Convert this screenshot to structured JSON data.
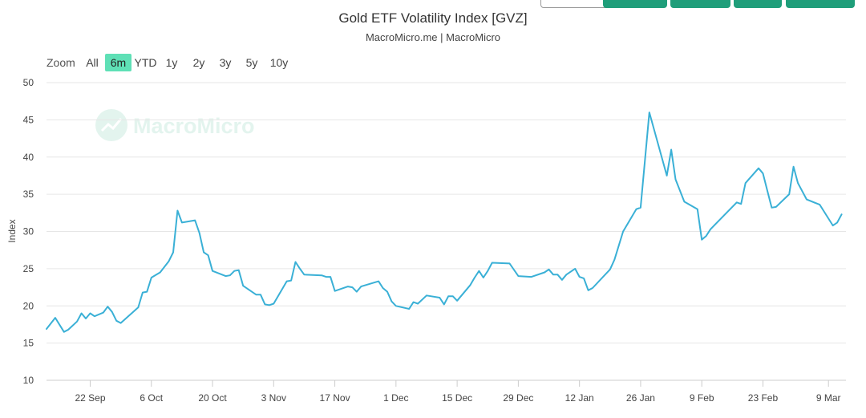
{
  "header": {
    "title": "Gold ETF Volatility Index [GVZ]",
    "subtitle": "MacroMicro.me | MacroMicro"
  },
  "range_selector": {
    "zoom_label": "Zoom",
    "buttons": [
      "All",
      "6m",
      "YTD",
      "1y",
      "2y",
      "3y",
      "5y",
      "10y"
    ],
    "active": "6m"
  },
  "watermark": {
    "text": "MacroMicro",
    "icon": "chart-trend-icon"
  },
  "colors": {
    "line": "#3ab0d6",
    "active_range": "#5fe0b6",
    "toolbar": "#1f9e7a",
    "watermark": "#e3f4ee"
  },
  "chart_data": {
    "type": "line",
    "title": "Gold ETF Volatility Index [GVZ]",
    "subtitle": "MacroMicro.me | MacroMicro",
    "xlabel": "",
    "ylabel": "Index",
    "ylim": [
      10,
      50
    ],
    "yticks": [
      10,
      15,
      20,
      25,
      30,
      35,
      40,
      45,
      50
    ],
    "grid": true,
    "legend": "none",
    "xrange": [
      "2023-09-12",
      "2024-03-13"
    ],
    "xticks": [
      {
        "date": "2023-09-22",
        "label": "22 Sep"
      },
      {
        "date": "2023-10-06",
        "label": "6 Oct"
      },
      {
        "date": "2023-10-20",
        "label": "20 Oct"
      },
      {
        "date": "2023-11-03",
        "label": "3 Nov"
      },
      {
        "date": "2023-11-17",
        "label": "17 Nov"
      },
      {
        "date": "2023-12-01",
        "label": "1 Dec"
      },
      {
        "date": "2023-12-15",
        "label": "15 Dec"
      },
      {
        "date": "2023-12-29",
        "label": "29 Dec"
      },
      {
        "date": "2024-01-12",
        "label": "12 Jan"
      },
      {
        "date": "2024-01-26",
        "label": "26 Jan"
      },
      {
        "date": "2024-02-09",
        "label": "9 Feb"
      },
      {
        "date": "2024-02-23",
        "label": "23 Feb"
      },
      {
        "date": "2024-03-09",
        "label": "9 Mar"
      }
    ],
    "series": [
      {
        "points": [
          [
            "2023-09-12",
            16.9
          ],
          [
            "2023-09-14",
            18.4
          ],
          [
            "2023-09-16",
            16.5
          ],
          [
            "2023-09-17",
            16.8
          ],
          [
            "2023-09-19",
            17.9
          ],
          [
            "2023-09-20",
            19.0
          ],
          [
            "2023-09-21",
            18.3
          ],
          [
            "2023-09-22",
            19.0
          ],
          [
            "2023-09-23",
            18.6
          ],
          [
            "2023-09-25",
            19.1
          ],
          [
            "2023-09-26",
            19.9
          ],
          [
            "2023-09-27",
            19.2
          ],
          [
            "2023-09-28",
            18.0
          ],
          [
            "2023-09-29",
            17.7
          ],
          [
            "2023-10-03",
            19.8
          ],
          [
            "2023-10-04",
            21.8
          ],
          [
            "2023-10-05",
            21.9
          ],
          [
            "2023-10-06",
            23.8
          ],
          [
            "2023-10-08",
            24.5
          ],
          [
            "2023-10-10",
            26.0
          ],
          [
            "2023-10-11",
            27.2
          ],
          [
            "2023-10-12",
            32.8
          ],
          [
            "2023-10-13",
            31.2
          ],
          [
            "2023-10-16",
            31.5
          ],
          [
            "2023-10-17",
            29.8
          ],
          [
            "2023-10-18",
            27.2
          ],
          [
            "2023-10-19",
            26.8
          ],
          [
            "2023-10-20",
            24.7
          ],
          [
            "2023-10-23",
            24.0
          ],
          [
            "2023-10-24",
            24.1
          ],
          [
            "2023-10-25",
            24.7
          ],
          [
            "2023-10-26",
            24.8
          ],
          [
            "2023-10-27",
            22.7
          ],
          [
            "2023-10-30",
            21.5
          ],
          [
            "2023-10-31",
            21.5
          ],
          [
            "2023-11-01",
            20.2
          ],
          [
            "2023-11-02",
            20.1
          ],
          [
            "2023-11-03",
            20.3
          ],
          [
            "2023-11-06",
            23.3
          ],
          [
            "2023-11-07",
            23.4
          ],
          [
            "2023-11-08",
            25.9
          ],
          [
            "2023-11-09",
            25.0
          ],
          [
            "2023-11-10",
            24.2
          ],
          [
            "2023-11-14",
            24.1
          ],
          [
            "2023-11-15",
            23.9
          ],
          [
            "2023-11-16",
            23.9
          ],
          [
            "2023-11-17",
            22.0
          ],
          [
            "2023-11-20",
            22.6
          ],
          [
            "2023-11-21",
            22.5
          ],
          [
            "2023-11-22",
            21.9
          ],
          [
            "2023-11-23",
            22.6
          ],
          [
            "2023-11-27",
            23.3
          ],
          [
            "2023-11-28",
            22.4
          ],
          [
            "2023-11-29",
            21.9
          ],
          [
            "2023-11-30",
            20.6
          ],
          [
            "2023-12-01",
            20.0
          ],
          [
            "2023-12-04",
            19.6
          ],
          [
            "2023-12-05",
            20.5
          ],
          [
            "2023-12-06",
            20.3
          ],
          [
            "2023-12-08",
            21.4
          ],
          [
            "2023-12-11",
            21.1
          ],
          [
            "2023-12-12",
            20.2
          ],
          [
            "2023-12-13",
            21.3
          ],
          [
            "2023-12-14",
            21.3
          ],
          [
            "2023-12-15",
            20.7
          ],
          [
            "2023-12-18",
            22.8
          ],
          [
            "2023-12-19",
            23.8
          ],
          [
            "2023-12-20",
            24.7
          ],
          [
            "2023-12-21",
            23.8
          ],
          [
            "2023-12-22",
            24.7
          ],
          [
            "2023-12-23",
            25.8
          ],
          [
            "2023-12-27",
            25.7
          ],
          [
            "2023-12-29",
            24.0
          ],
          [
            "2024-01-01",
            23.9
          ],
          [
            "2024-01-04",
            24.5
          ],
          [
            "2024-01-05",
            24.9
          ],
          [
            "2024-01-06",
            24.2
          ],
          [
            "2024-01-07",
            24.2
          ],
          [
            "2024-01-08",
            23.5
          ],
          [
            "2024-01-09",
            24.2
          ],
          [
            "2024-01-11",
            25.0
          ],
          [
            "2024-01-12",
            23.9
          ],
          [
            "2024-01-13",
            23.7
          ],
          [
            "2024-01-14",
            22.1
          ],
          [
            "2024-01-15",
            22.4
          ],
          [
            "2024-01-19",
            24.9
          ],
          [
            "2024-01-20",
            26.2
          ],
          [
            "2024-01-22",
            30.0
          ],
          [
            "2024-01-25",
            33.0
          ],
          [
            "2024-01-26",
            33.2
          ],
          [
            "2024-01-28",
            46.0
          ],
          [
            "2024-02-01",
            37.5
          ],
          [
            "2024-02-02",
            41.0
          ],
          [
            "2024-02-03",
            37.0
          ],
          [
            "2024-02-05",
            34.0
          ],
          [
            "2024-02-08",
            33.0
          ],
          [
            "2024-02-09",
            28.9
          ],
          [
            "2024-02-10",
            29.4
          ],
          [
            "2024-02-11",
            30.3
          ],
          [
            "2024-02-17",
            33.9
          ],
          [
            "2024-02-18",
            33.7
          ],
          [
            "2024-02-19",
            36.5
          ],
          [
            "2024-02-22",
            38.5
          ],
          [
            "2024-02-23",
            37.8
          ],
          [
            "2024-02-24",
            35.5
          ],
          [
            "2024-02-25",
            33.2
          ],
          [
            "2024-02-26",
            33.3
          ],
          [
            "2024-02-29",
            35.0
          ],
          [
            "2024-03-01",
            38.7
          ],
          [
            "2024-03-02",
            36.5
          ],
          [
            "2024-03-04",
            34.3
          ],
          [
            "2024-03-07",
            33.6
          ],
          [
            "2024-03-10",
            30.8
          ],
          [
            "2024-03-11",
            31.2
          ],
          [
            "2024-03-12",
            32.3
          ]
        ]
      }
    ]
  }
}
